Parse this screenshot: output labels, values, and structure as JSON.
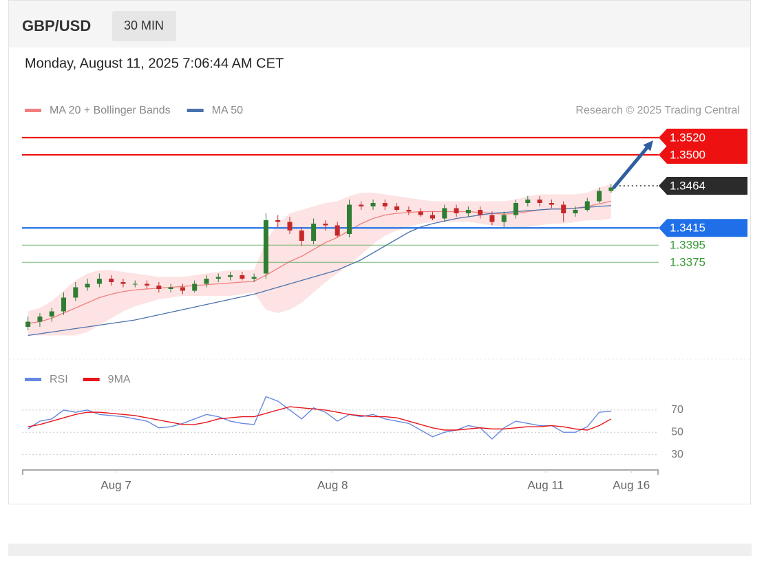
{
  "chart_data": [
    {
      "type": "candlestick",
      "symbol": "GBP/USD",
      "interval": "30 MIN",
      "timestamp": "Monday, August 11, 2025 7:06:44 AM CET",
      "credit": "Research © 2025 Trading Central",
      "up_color": "#2e7d32",
      "down_color": "#c62828",
      "open": [
        1.33,
        1.3306,
        1.3312,
        1.3318,
        1.3334,
        1.3346,
        1.335,
        1.3356,
        1.3352,
        1.335,
        1.335,
        1.3348,
        1.3344,
        1.3346,
        1.3342,
        1.335,
        1.3356,
        1.3358,
        1.336,
        1.3356,
        1.3362,
        1.3424,
        1.3422,
        1.3412,
        1.34,
        1.342,
        1.3418,
        1.3408,
        1.3442,
        1.344,
        1.3444,
        1.344,
        1.3436,
        1.3434,
        1.343,
        1.3426,
        1.3438,
        1.3432,
        1.3436,
        1.343,
        1.3422,
        1.343,
        1.3444,
        1.3448,
        1.3444,
        1.3442,
        1.3432,
        1.3436,
        1.3446,
        1.3458
      ],
      "high": [
        1.3312,
        1.3316,
        1.3322,
        1.334,
        1.3352,
        1.3356,
        1.3362,
        1.336,
        1.3356,
        1.3354,
        1.3354,
        1.3352,
        1.335,
        1.335,
        1.3354,
        1.336,
        1.3362,
        1.3364,
        1.3364,
        1.3362,
        1.3432,
        1.343,
        1.3428,
        1.3416,
        1.3426,
        1.3424,
        1.3422,
        1.3448,
        1.3446,
        1.3448,
        1.3448,
        1.3444,
        1.344,
        1.3438,
        1.3434,
        1.3442,
        1.3442,
        1.344,
        1.344,
        1.3434,
        1.3434,
        1.3448,
        1.3452,
        1.3452,
        1.3448,
        1.3446,
        1.344,
        1.345,
        1.3462,
        1.3466
      ],
      "low": [
        1.3296,
        1.33,
        1.3306,
        1.3314,
        1.333,
        1.3342,
        1.3346,
        1.3348,
        1.3346,
        1.3346,
        1.3344,
        1.334,
        1.334,
        1.3338,
        1.334,
        1.3346,
        1.3352,
        1.3354,
        1.3354,
        1.3352,
        1.3356,
        1.3416,
        1.3408,
        1.3394,
        1.3396,
        1.3412,
        1.3404,
        1.3404,
        1.3436,
        1.3436,
        1.3436,
        1.3434,
        1.343,
        1.3428,
        1.3424,
        1.3422,
        1.3428,
        1.3428,
        1.3426,
        1.3418,
        1.3416,
        1.3426,
        1.344,
        1.344,
        1.3438,
        1.3422,
        1.3428,
        1.3434,
        1.3444,
        1.3456
      ],
      "close": [
        1.3306,
        1.3312,
        1.3318,
        1.3334,
        1.3346,
        1.335,
        1.3356,
        1.3352,
        1.335,
        1.335,
        1.3348,
        1.3344,
        1.3346,
        1.3342,
        1.335,
        1.3356,
        1.3358,
        1.336,
        1.3356,
        1.3358,
        1.3424,
        1.3422,
        1.3412,
        1.34,
        1.342,
        1.3418,
        1.3406,
        1.3442,
        1.344,
        1.3444,
        1.344,
        1.3436,
        1.3434,
        1.343,
        1.3426,
        1.3438,
        1.3432,
        1.3436,
        1.343,
        1.3422,
        1.343,
        1.3444,
        1.3448,
        1.3444,
        1.3442,
        1.3432,
        1.3436,
        1.3446,
        1.3458,
        1.3462
      ],
      "series": [
        {
          "name": "MA 20 + Bollinger Bands",
          "color": "#f08080",
          "band_color": "#fde3e3",
          "values": [
            1.3304,
            1.3306,
            1.331,
            1.3316,
            1.3322,
            1.3328,
            1.3334,
            1.3338,
            1.3341,
            1.3343,
            1.3344,
            1.3345,
            1.3346,
            1.3347,
            1.3348,
            1.3349,
            1.335,
            1.3351,
            1.3352,
            1.3353,
            1.336,
            1.3368,
            1.3376,
            1.3382,
            1.339,
            1.3398,
            1.3404,
            1.3412,
            1.342,
            1.3426,
            1.343,
            1.3432,
            1.3433,
            1.3434,
            1.3434,
            1.3434,
            1.3434,
            1.3434,
            1.3433,
            1.3432,
            1.3431,
            1.3432,
            1.3434,
            1.3436,
            1.3437,
            1.3437,
            1.3438,
            1.344,
            1.3443,
            1.3446
          ],
          "upper": [
            1.3318,
            1.3322,
            1.333,
            1.3342,
            1.3354,
            1.3362,
            1.3366,
            1.3366,
            1.3364,
            1.3362,
            1.336,
            1.3358,
            1.3358,
            1.3358,
            1.336,
            1.3362,
            1.3364,
            1.3366,
            1.3366,
            1.3366,
            1.34,
            1.342,
            1.3432,
            1.3436,
            1.344,
            1.3444,
            1.3446,
            1.3452,
            1.3456,
            1.3456,
            1.3454,
            1.3452,
            1.345,
            1.3448,
            1.3446,
            1.3446,
            1.3446,
            1.3446,
            1.3446,
            1.3446,
            1.3446,
            1.3448,
            1.3452,
            1.3454,
            1.3454,
            1.3454,
            1.3454,
            1.3456,
            1.3462,
            1.3466
          ],
          "lower": [
            1.329,
            1.329,
            1.329,
            1.329,
            1.329,
            1.3294,
            1.3302,
            1.331,
            1.3318,
            1.3324,
            1.3328,
            1.3332,
            1.3334,
            1.3336,
            1.3336,
            1.3336,
            1.3336,
            1.3336,
            1.3338,
            1.334,
            1.332,
            1.3316,
            1.332,
            1.3328,
            1.334,
            1.3352,
            1.3362,
            1.3372,
            1.3384,
            1.3396,
            1.3406,
            1.3412,
            1.3416,
            1.342,
            1.3422,
            1.3422,
            1.3422,
            1.3422,
            1.342,
            1.3418,
            1.3416,
            1.3416,
            1.3416,
            1.3418,
            1.342,
            1.342,
            1.3422,
            1.3424,
            1.3424,
            1.3426
          ]
        },
        {
          "name": "MA 50",
          "color": "#4a72ad",
          "values": [
            1.329,
            1.3292,
            1.3294,
            1.3296,
            1.3298,
            1.33,
            1.3302,
            1.3304,
            1.3306,
            1.3308,
            1.3311,
            1.3314,
            1.3317,
            1.332,
            1.3323,
            1.3326,
            1.3329,
            1.3332,
            1.3335,
            1.3338,
            1.3342,
            1.3346,
            1.335,
            1.3354,
            1.3358,
            1.3362,
            1.3366,
            1.3372,
            1.3378,
            1.3386,
            1.3394,
            1.3402,
            1.341,
            1.3416,
            1.342,
            1.3423,
            1.3426,
            1.3428,
            1.343,
            1.3432,
            1.3433,
            1.3434,
            1.3435,
            1.3436,
            1.3437,
            1.3437,
            1.3438,
            1.3439,
            1.344,
            1.3441
          ]
        }
      ],
      "levels": [
        {
          "value": 1.352,
          "label": "1.3520",
          "color": "#ee1111",
          "line": "solid",
          "box": true
        },
        {
          "value": 1.35,
          "label": "1.3500",
          "color": "#ee1111",
          "line": "solid",
          "box": true
        },
        {
          "value": 1.3464,
          "label": "1.3464",
          "color": "#2b2b2b",
          "line": "dotted",
          "box": true
        },
        {
          "value": 1.3415,
          "label": "1.3415",
          "color": "#1f6fe8",
          "line": "solid",
          "box": true
        },
        {
          "value": 1.3395,
          "label": "1.3395",
          "color": "#3a9a3a",
          "line": "solid",
          "box": false
        },
        {
          "value": 1.3375,
          "label": "1.3375",
          "color": "#3a9a3a",
          "line": "solid",
          "box": false
        }
      ],
      "target_color": "#2f5f9e",
      "xlim": [
        -0.5,
        53
      ],
      "ylim": [
        1.3264,
        1.3532
      ]
    },
    {
      "type": "line",
      "series": [
        {
          "name": "RSI",
          "color": "#6688e0",
          "values": [
            53,
            60,
            62,
            70,
            68,
            70,
            66,
            65,
            64,
            62,
            60,
            54,
            55,
            58,
            62,
            66,
            64,
            60,
            58,
            57,
            82,
            78,
            70,
            62,
            72,
            68,
            60,
            66,
            64,
            66,
            62,
            60,
            58,
            52,
            46,
            50,
            52,
            56,
            54,
            44,
            54,
            60,
            58,
            56,
            56,
            50,
            50,
            55,
            68,
            69
          ]
        },
        {
          "name": "9MA",
          "color": "#e8141a",
          "values": [
            55,
            57,
            60,
            63,
            66,
            68,
            68,
            67,
            66,
            65,
            63,
            61,
            59,
            57,
            57,
            59,
            62,
            63,
            64,
            64,
            67,
            70,
            73,
            72,
            71,
            70,
            68,
            66,
            65,
            64,
            64,
            63,
            60,
            57,
            54,
            52,
            52,
            53,
            54,
            53,
            53,
            54,
            55,
            55,
            56,
            55,
            53,
            52,
            56,
            62
          ]
        }
      ],
      "xlim": [
        -0.5,
        53
      ],
      "xticks": [
        {
          "value": 7.4,
          "label": "Aug 7"
        },
        {
          "value": 25.6,
          "label": "Aug 8"
        },
        {
          "value": 43.5,
          "label": "Aug 11"
        },
        {
          "value": 50.7,
          "label": "Aug 16"
        }
      ],
      "ylim": [
        18,
        86
      ],
      "yticks": [
        70,
        50,
        30
      ],
      "grid": true
    }
  ]
}
